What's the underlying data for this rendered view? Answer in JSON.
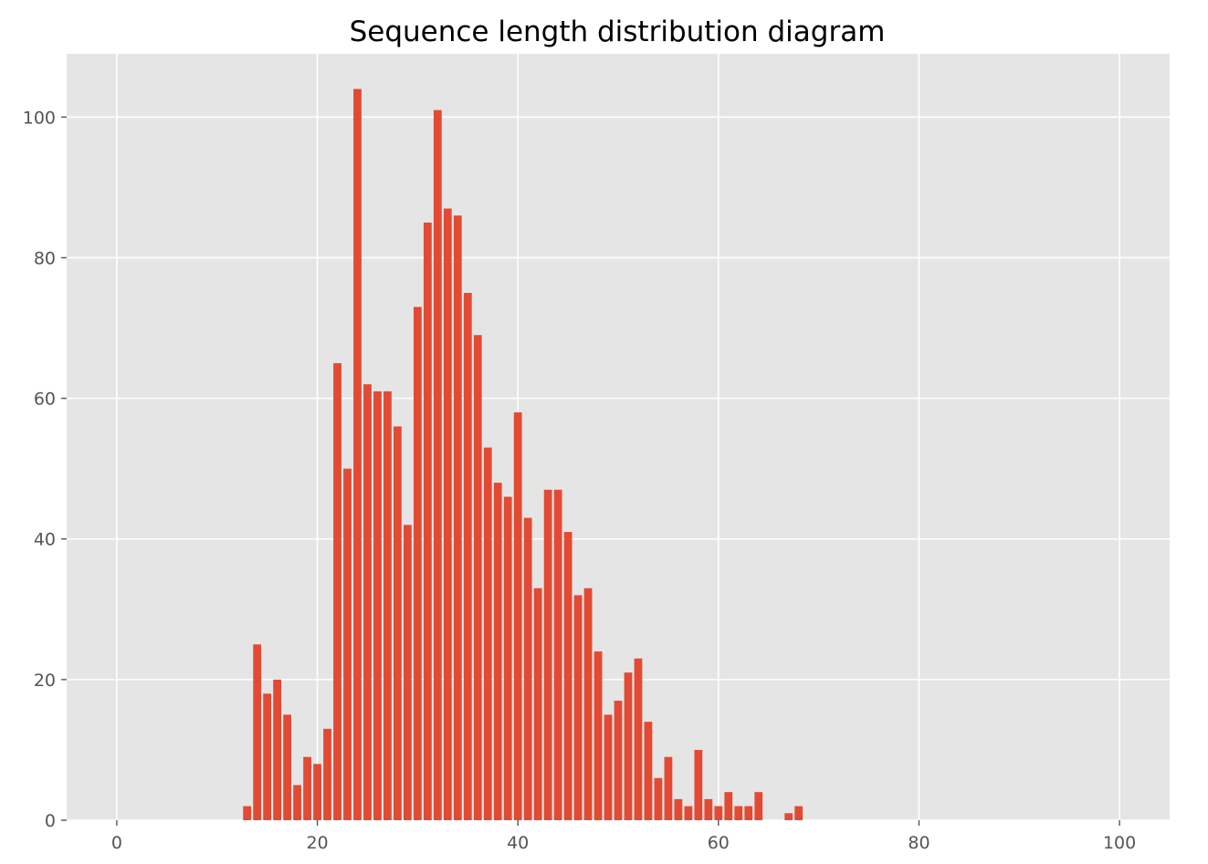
{
  "chart_data": {
    "type": "bar",
    "title": "Sequence length distribution diagram",
    "xlabel": "",
    "ylabel": "",
    "xlim": [
      -5,
      105
    ],
    "ylim": [
      0,
      109
    ],
    "x_ticks": [
      0,
      20,
      40,
      60,
      80,
      100
    ],
    "y_ticks": [
      0,
      20,
      40,
      60,
      80,
      100
    ],
    "grid": true,
    "legend": "none",
    "colors": {
      "bar": "#E24A33",
      "plot_background": "#E5E5E5",
      "grid": "#FFFFFF",
      "tick_label": "#555555",
      "title": "#000000"
    },
    "series": [
      {
        "x": [
          13,
          14,
          15,
          16,
          17,
          18,
          19,
          20,
          21,
          22,
          23,
          24,
          25,
          26,
          27,
          28,
          29,
          30,
          31,
          32,
          33,
          34,
          35,
          36,
          37,
          38,
          39,
          40,
          41,
          42,
          43,
          44,
          45,
          46,
          47,
          48,
          49,
          50,
          51,
          52,
          53,
          54,
          55,
          56,
          57,
          58,
          59,
          60,
          61,
          62,
          63,
          64,
          67,
          68
        ],
        "values": [
          2,
          25,
          18,
          20,
          15,
          5,
          9,
          8,
          13,
          65,
          50,
          104,
          62,
          61,
          61,
          56,
          42,
          73,
          85,
          101,
          87,
          86,
          75,
          69,
          53,
          48,
          46,
          58,
          43,
          33,
          47,
          47,
          41,
          32,
          33,
          24,
          15,
          17,
          21,
          23,
          14,
          6,
          9,
          3,
          2,
          10,
          3,
          2,
          4,
          2,
          2,
          4,
          1,
          2
        ]
      }
    ]
  }
}
